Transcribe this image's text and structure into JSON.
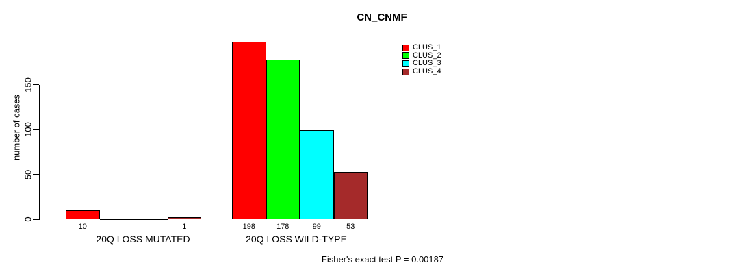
{
  "chart_data": {
    "type": "bar",
    "title": "CN_CNMF",
    "ylabel": "number of cases",
    "yticks": [
      0,
      50,
      100,
      150
    ],
    "ylim": [
      0,
      198
    ],
    "grid": false,
    "legend_position": "top-right",
    "categories": [
      "20Q LOSS MUTATED",
      "20Q LOSS WILD-TYPE"
    ],
    "series": [
      {
        "name": "CLUS_1",
        "color": "#ff0000",
        "values": [
          10,
          198
        ]
      },
      {
        "name": "CLUS_2",
        "color": "#00ff00",
        "values": [
          0,
          178
        ]
      },
      {
        "name": "CLUS_3",
        "color": "#00ffff",
        "values": [
          0,
          99
        ]
      },
      {
        "name": "CLUS_4",
        "color": "#a52a2a",
        "values": [
          1,
          53
        ]
      }
    ],
    "bar_value_labels": [
      [
        "10",
        "",
        "",
        "1"
      ],
      [
        "198",
        "178",
        "99",
        "53"
      ]
    ],
    "footer": "Fisher's exact test P = 0.00187"
  }
}
